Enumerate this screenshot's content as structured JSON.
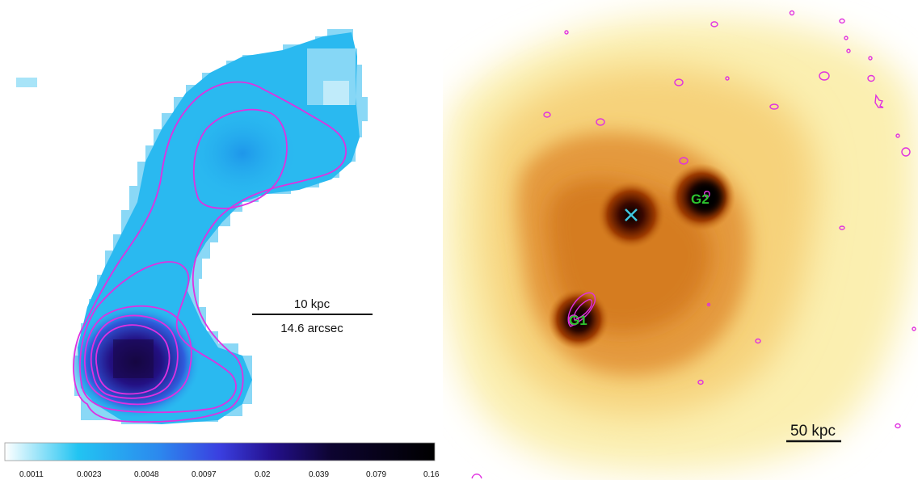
{
  "left_image": {
    "scale_bar": {
      "top_label": "10 kpc",
      "bottom_label": "14.6 arcsec"
    },
    "colorbar": {
      "tick_labels": [
        "0.0011",
        "0.0023",
        "0.0048",
        "0.0097",
        "0.02",
        "0.039",
        "0.079",
        "0.16"
      ],
      "colors": [
        "#ffffff",
        "#28c8f0",
        "#3a5ae8",
        "#2a10a0",
        "#14053c",
        "#000000"
      ]
    },
    "contour_color": "#e030e0"
  },
  "right_image": {
    "galaxy_labels": {
      "g1": "G1",
      "g2": "G2"
    },
    "scale_bar": {
      "label": "50 kpc"
    },
    "cross_color": "#40c8e0",
    "label_color": "#2ec42e",
    "contour_color": "#e030e0"
  }
}
